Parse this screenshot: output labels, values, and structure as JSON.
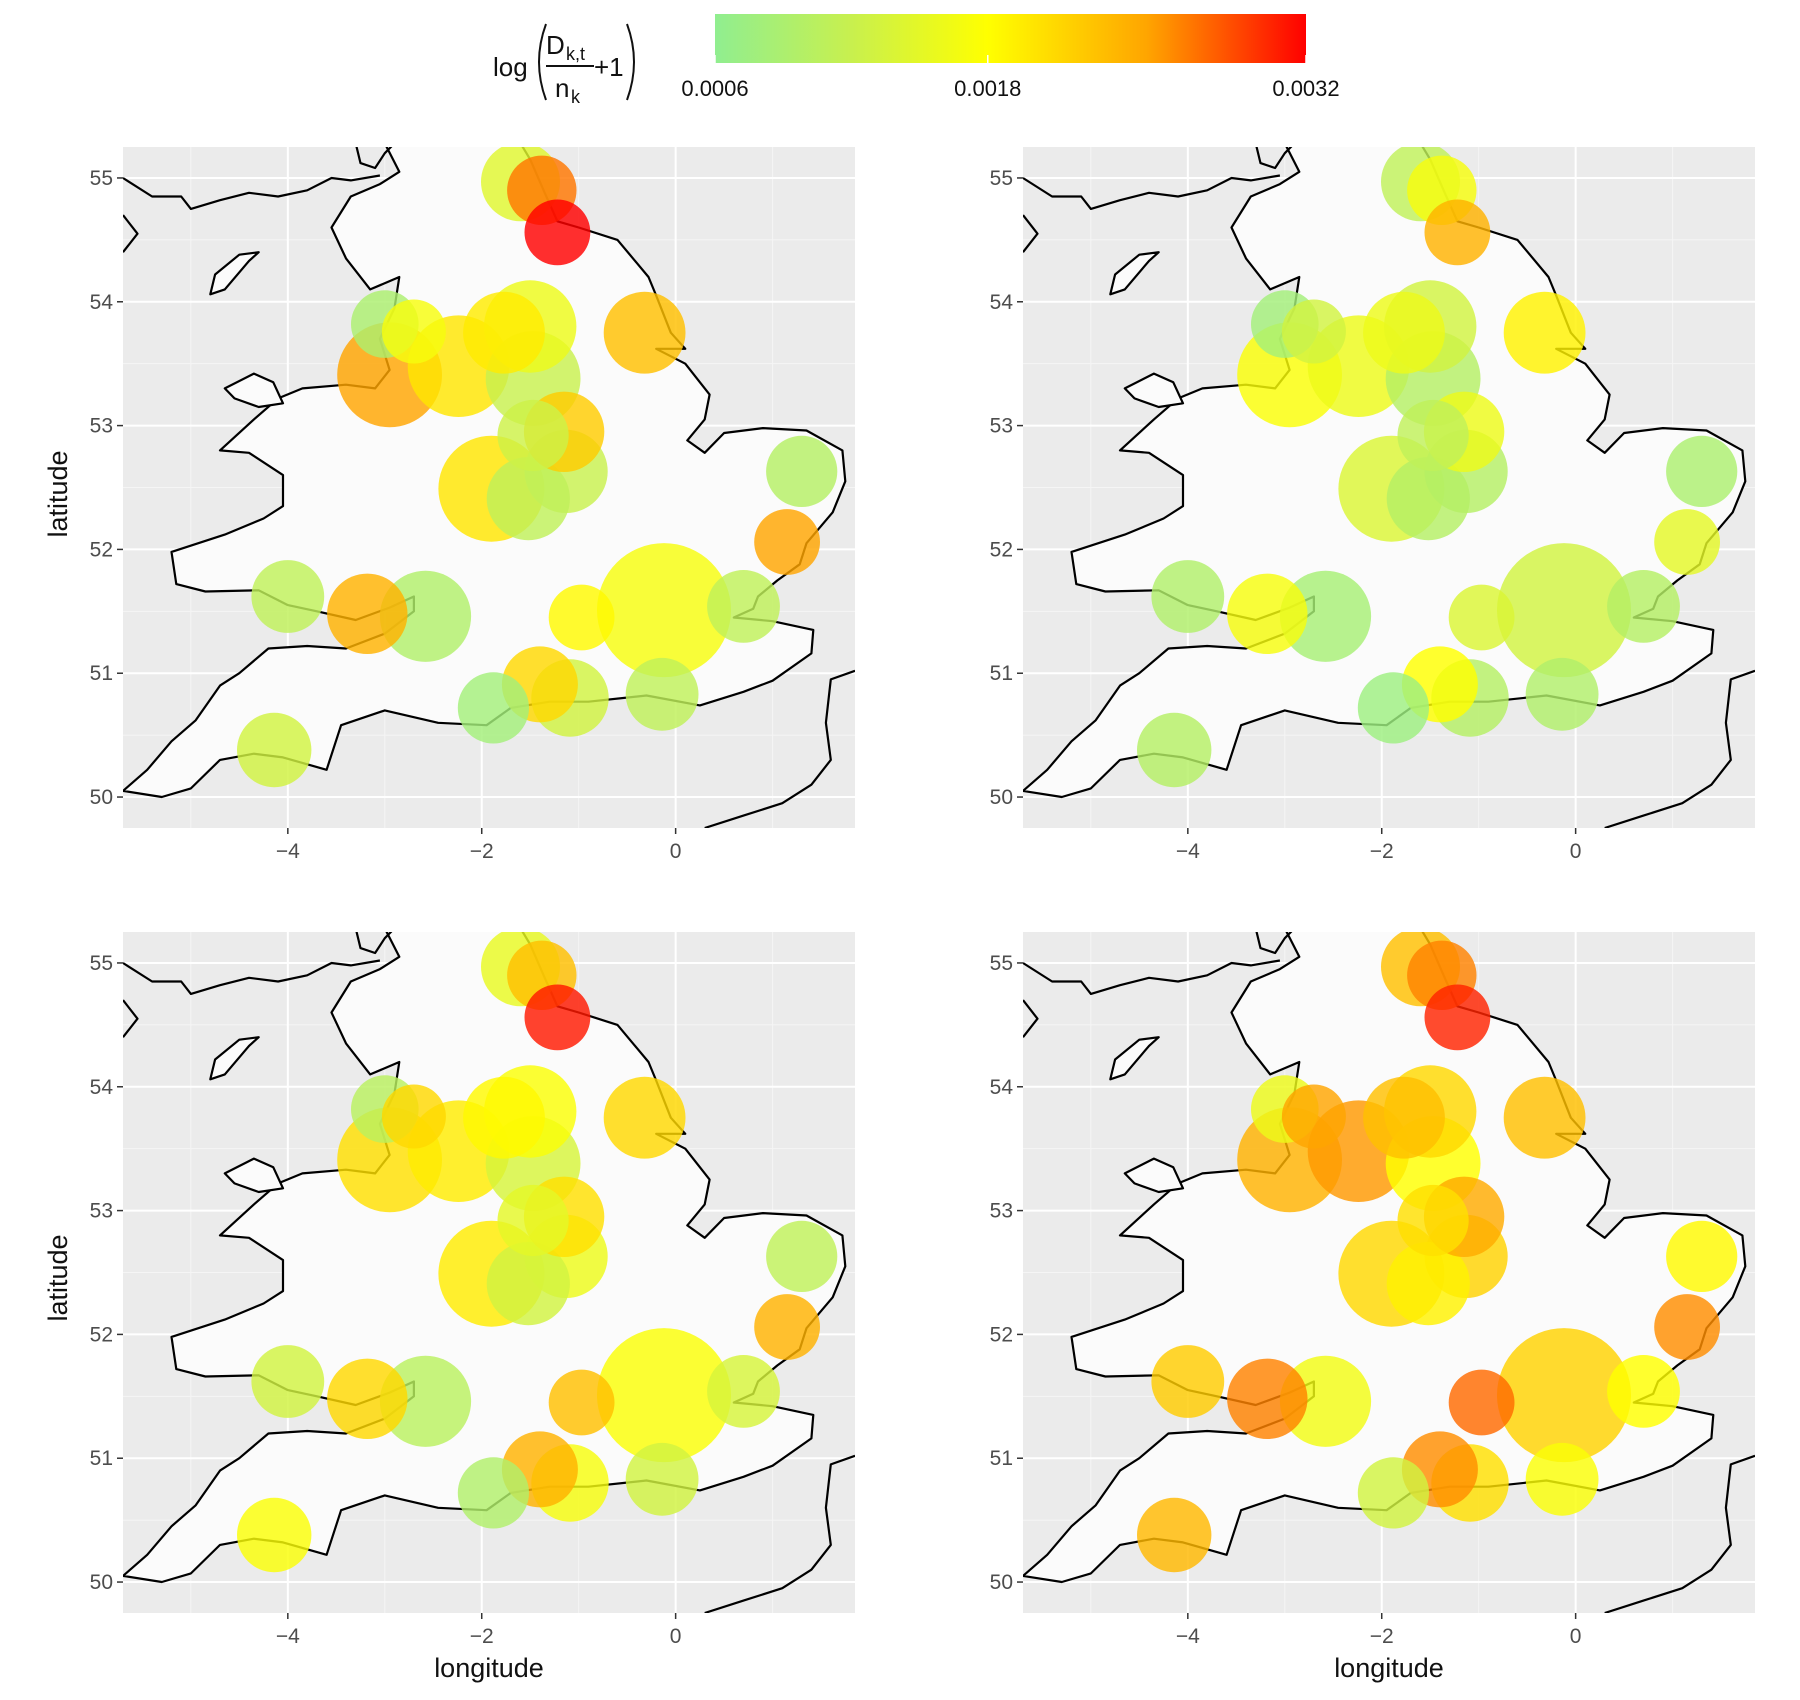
{
  "legend": {
    "title": {
      "prefix": "log",
      "numerator": "D",
      "numerator_sub": "k,t",
      "denominator": "n",
      "denominator_sub": "k",
      "suffix": "+1"
    },
    "min": 0.0006,
    "max": 0.0032,
    "ticks": [
      {
        "value": 0.0006,
        "label": "0.0006"
      },
      {
        "value": 0.0018,
        "label": "0.0018"
      },
      {
        "value": 0.0032,
        "label": "0.0032"
      }
    ],
    "colors": [
      "#90ee90",
      "#c8f04e",
      "#ffff00",
      "#ffa500",
      "#ff0000"
    ],
    "color_stops": [
      0.0006,
      0.0012,
      0.0018,
      0.0025,
      0.0032
    ]
  },
  "axes": {
    "xlabel": "longitude",
    "ylabel": "latitude",
    "xlim": [
      -5.7,
      1.85
    ],
    "ylim": [
      49.75,
      55.25
    ],
    "xticks": [
      {
        "value": -4,
        "label": "−4"
      },
      {
        "value": -2,
        "label": "−2"
      },
      {
        "value": 0,
        "label": "0"
      }
    ],
    "yticks": [
      {
        "value": 50,
        "label": "50"
      },
      {
        "value": 51,
        "label": "51"
      },
      {
        "value": 52,
        "label": "52"
      },
      {
        "value": 53,
        "label": "53"
      },
      {
        "value": 54,
        "label": "54"
      },
      {
        "value": 55,
        "label": "55"
      }
    ],
    "panel_background": "#ebebeb",
    "land_fill": "#fbfbfb",
    "coast_color": "#000000",
    "grid": true
  },
  "chart_data": {
    "type": "scatter",
    "stations": [
      {
        "lon": -1.6,
        "lat": 54.97,
        "size": 2.2
      },
      {
        "lon": -1.38,
        "lat": 54.9,
        "size": 1.6
      },
      {
        "lon": -1.22,
        "lat": 54.56,
        "size": 1.4
      },
      {
        "lon": -3.0,
        "lat": 53.82,
        "size": 1.5
      },
      {
        "lon": -2.7,
        "lat": 53.76,
        "size": 1.3
      },
      {
        "lon": -1.77,
        "lat": 53.75,
        "size": 2.4
      },
      {
        "lon": -1.5,
        "lat": 53.8,
        "size": 3.2
      },
      {
        "lon": -0.32,
        "lat": 53.75,
        "size": 2.4
      },
      {
        "lon": -2.95,
        "lat": 53.41,
        "size": 4.3
      },
      {
        "lon": -2.24,
        "lat": 53.48,
        "size": 4.0
      },
      {
        "lon": -1.47,
        "lat": 53.38,
        "size": 3.4
      },
      {
        "lon": -1.47,
        "lat": 52.92,
        "size": 1.7
      },
      {
        "lon": -1.15,
        "lat": 52.95,
        "size": 2.3
      },
      {
        "lon": -1.13,
        "lat": 52.63,
        "size": 2.5
      },
      {
        "lon": 1.3,
        "lat": 52.63,
        "size": 1.7
      },
      {
        "lon": -1.9,
        "lat": 52.49,
        "size": 4.4
      },
      {
        "lon": -1.52,
        "lat": 52.41,
        "size": 2.5
      },
      {
        "lon": 1.15,
        "lat": 52.06,
        "size": 1.4
      },
      {
        "lon": -4.0,
        "lat": 51.62,
        "size": 1.8
      },
      {
        "lon": -3.18,
        "lat": 51.48,
        "size": 2.3
      },
      {
        "lon": -2.58,
        "lat": 51.46,
        "size": 3.1
      },
      {
        "lon": -0.97,
        "lat": 51.45,
        "size": 1.4
      },
      {
        "lon": -0.12,
        "lat": 51.51,
        "size": 7.5
      },
      {
        "lon": 0.7,
        "lat": 51.54,
        "size": 1.8
      },
      {
        "lon": -1.4,
        "lat": 50.91,
        "size": 2.0
      },
      {
        "lon": -1.09,
        "lat": 50.8,
        "size": 2.1
      },
      {
        "lon": -0.14,
        "lat": 50.83,
        "size": 1.8
      },
      {
        "lon": -1.88,
        "lat": 50.72,
        "size": 1.7
      },
      {
        "lon": -4.14,
        "lat": 50.38,
        "size": 1.9
      }
    ],
    "panels": [
      {
        "name": "top-left",
        "values": [
          0.00145,
          0.0027,
          0.0032,
          0.0009,
          0.0017,
          0.00195,
          0.0016,
          0.0023,
          0.0025,
          0.002,
          0.0012,
          0.00125,
          0.0022,
          0.0012,
          0.001,
          0.002,
          0.0011,
          0.0025,
          0.0011,
          0.0024,
          0.00095,
          0.00185,
          0.0017,
          0.0011,
          0.0021,
          0.0013,
          0.0011,
          0.0008,
          0.0013
        ]
      },
      {
        "name": "top-right",
        "values": [
          0.0011,
          0.0017,
          0.0024,
          0.0008,
          0.0013,
          0.0016,
          0.0013,
          0.0019,
          0.00175,
          0.0016,
          0.001,
          0.0011,
          0.0016,
          0.001,
          0.0009,
          0.0014,
          0.001,
          0.0015,
          0.00095,
          0.0017,
          0.00085,
          0.0014,
          0.0013,
          0.001,
          0.0018,
          0.001,
          0.00095,
          0.00075,
          0.001
        ]
      },
      {
        "name": "bottom-left",
        "values": [
          0.00155,
          0.0023,
          0.0031,
          0.00105,
          0.0021,
          0.00185,
          0.00175,
          0.0021,
          0.00205,
          0.00195,
          0.00135,
          0.0015,
          0.00205,
          0.0016,
          0.0011,
          0.00195,
          0.0013,
          0.0024,
          0.0013,
          0.0021,
          0.00105,
          0.0023,
          0.00175,
          0.00135,
          0.0024,
          0.0017,
          0.0013,
          0.00095,
          0.00175
        ]
      },
      {
        "name": "bottom-right",
        "values": [
          0.0023,
          0.00265,
          0.00305,
          0.0016,
          0.0025,
          0.0023,
          0.0021,
          0.0023,
          0.0024,
          0.00255,
          0.0018,
          0.00205,
          0.00245,
          0.00215,
          0.00185,
          0.0021,
          0.0019,
          0.0026,
          0.0022,
          0.00265,
          0.00165,
          0.00275,
          0.00215,
          0.0018,
          0.0026,
          0.00205,
          0.00175,
          0.0013,
          0.00235
        ]
      }
    ]
  }
}
